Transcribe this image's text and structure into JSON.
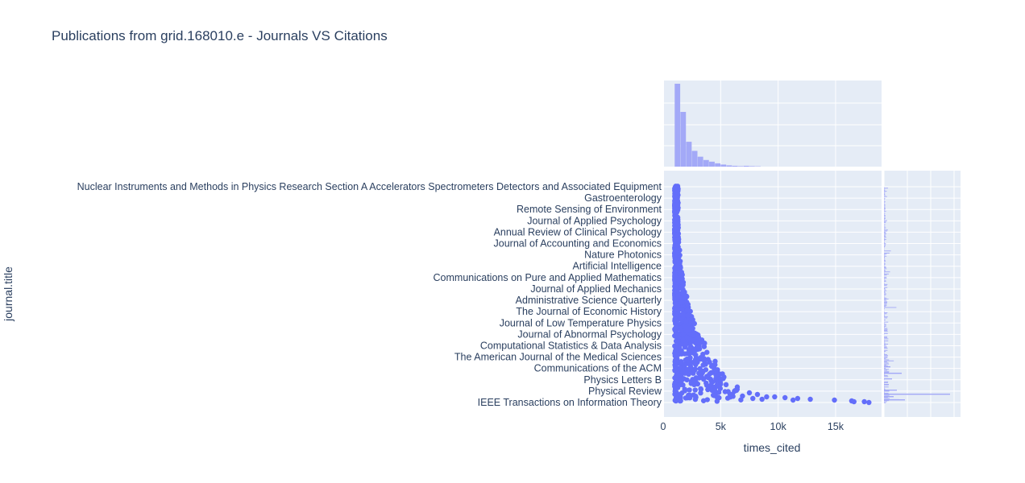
{
  "chart_data": {
    "type": "scatter",
    "title": "Publications from grid.168010.e - Journals VS Citations",
    "xlabel": "times_cited",
    "ylabel": "journal.title",
    "xlim": [
      0,
      19000
    ],
    "x_ticks": [
      {
        "value": 0,
        "label": "0"
      },
      {
        "value": 5000,
        "label": "5k"
      },
      {
        "value": 10000,
        "label": "10k"
      },
      {
        "value": 15000,
        "label": "15k"
      }
    ],
    "grid": true,
    "colors": {
      "marker": "#636efa",
      "histogram": "#a3a9f7",
      "plot_bg": "#e5ecf6",
      "text": "#2a3f5f"
    },
    "y_tick_labels": [
      "Nuclear Instruments and Methods in Physics Research Section A Accelerators Spectrometers Detectors and Associated Equipment",
      "Gastroenterology",
      "Remote Sensing of Environment",
      "Journal of Applied Psychology",
      "Annual Review of Clinical Psychology",
      "Journal of Accounting and Economics",
      "Nature Photonics",
      "Artificial Intelligence",
      "Communications on Pure and Applied Mathematics",
      "Journal of Applied Mechanics",
      "Administrative Science Quarterly",
      "The Journal of Economic History",
      "Journal of Low Temperature Physics",
      "Journal of Abnormal Psychology",
      "Computational Statistics & Data Analysis",
      "The American Journal of the Medical Sciences",
      "Communications of the ACM",
      "Physics Letters B",
      "Physical Review",
      "IEEE Transactions on Information Theory"
    ],
    "marginal_x": {
      "type": "histogram",
      "bin_width": 500,
      "bin_start": 1000,
      "relative_heights": [
        1.0,
        0.66,
        0.3,
        0.19,
        0.12,
        0.08,
        0.06,
        0.04,
        0.025,
        0.015,
        0.01,
        0.006,
        0.01,
        0.006,
        0.004
      ]
    },
    "marginal_y": {
      "type": "histogram",
      "orientation": "horizontal",
      "note_peak_category": "Physical Review"
    }
  }
}
